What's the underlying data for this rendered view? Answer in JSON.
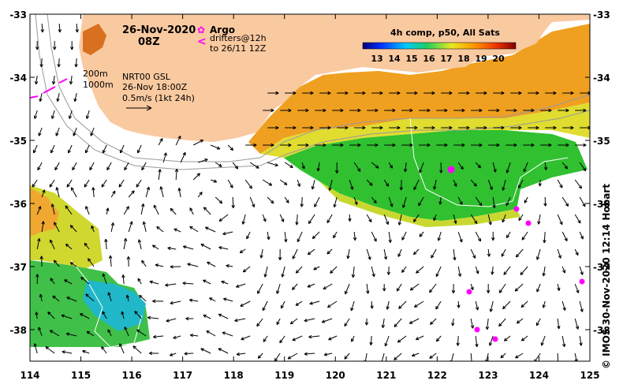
{
  "map": {
    "date": "26-Nov-2020",
    "time": "08Z",
    "legend_argo_symbol": "✿",
    "legend_argo_label": "Argo",
    "legend_drifter_symbol": "<",
    "legend_drifter_line1": "drifters@12h",
    "legend_drifter_line2": "to 26/11 12Z",
    "colorbar_title": "4h comp, p50, All Sats",
    "colorbar_ticks": [
      "13",
      "14",
      "15",
      "16",
      "17",
      "18",
      "19",
      "20"
    ],
    "depth_label_1": "200m",
    "depth_label_2": "1000m",
    "product_line1": "NRT00 GSL",
    "product_line2": "26-Nov 18:00Z",
    "product_line3": "0.5m/s (1kt 24h)",
    "credit": "© IMOS 30-Nov-2020 12:14 Hobart",
    "x_axis": {
      "labels": [
        "114",
        "115",
        "116",
        "117",
        "118",
        "119",
        "120",
        "121",
        "122",
        "123",
        "124",
        "125"
      ],
      "range": [
        114,
        125
      ]
    },
    "y_axis": {
      "labels": [
        "-33",
        "-34",
        "-35",
        "-36",
        "-37",
        "-38"
      ],
      "range": [
        -38.5,
        -33
      ]
    },
    "colors": {
      "land": "#f9c9a0",
      "sst_orange": "#f0a020",
      "sst_yellow": "#e6e020",
      "sst_green": "#30c030",
      "sst_cyan": "#20b8d0",
      "argo": "#ff00ff",
      "arrow": "#000000"
    }
  }
}
